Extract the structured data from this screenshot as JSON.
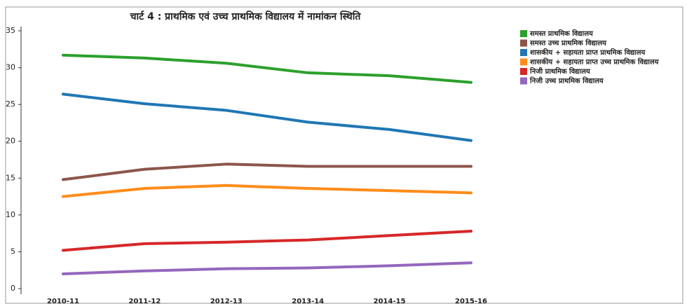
{
  "chart_data": {
    "type": "line",
    "title": "चार्ट 4 : प्राथमिक एवं उच्च प्राथमिक विद्यालय में नामांकन स्थिति",
    "categories": [
      "2010-11",
      "2011-12",
      "2012-13",
      "2013-14",
      "2014-15",
      "2015-16"
    ],
    "series": [
      {
        "name": "समस्त प्राथमिक विद्यालय",
        "color": "#2ca02c",
        "values": [
          31.7,
          31.3,
          30.6,
          29.3,
          28.9,
          28.0
        ]
      },
      {
        "name": "समस्त उच्च प्राथमिक विद्यालय",
        "color": "#8c564b",
        "values": [
          14.8,
          16.2,
          16.9,
          16.6,
          16.6,
          16.6
        ]
      },
      {
        "name": "शासकीय + सहायता प्राप्त प्राथमिक विद्यालय",
        "color": "#1f77b4",
        "values": [
          26.4,
          25.1,
          24.2,
          22.6,
          21.6,
          20.1
        ]
      },
      {
        "name": "शासकीय + सहायता प्राप्त उच्च प्राथमिक विद्यालय",
        "color": "#ff8c1a",
        "values": [
          12.5,
          13.6,
          14.0,
          13.6,
          13.3,
          13.0
        ]
      },
      {
        "name": "निजी प्राथमिक विद्यालय",
        "color": "#d62728",
        "values": [
          5.2,
          6.1,
          6.3,
          6.6,
          7.2,
          7.8
        ]
      },
      {
        "name": "निजी उच्च प्राथमिक विद्यालय",
        "color": "#9467bd",
        "values": [
          2.0,
          2.4,
          2.7,
          2.8,
          3.1,
          3.5
        ]
      }
    ],
    "ylim": [
      0,
      35
    ],
    "yticks": [
      0,
      5,
      10,
      15,
      20,
      25,
      30,
      35
    ]
  }
}
